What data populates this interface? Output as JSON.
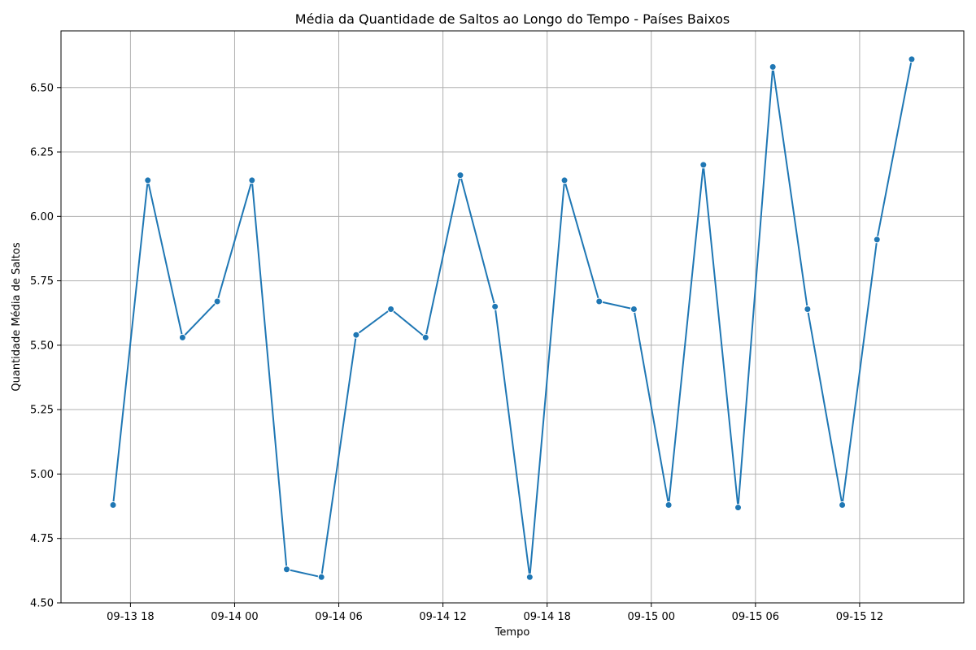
{
  "chart_data": {
    "type": "line",
    "title": "Média da Quantidade de Saltos ao Longo do Tempo - Países Baixos",
    "xlabel": "Tempo",
    "ylabel": "Quantidade Média de Saltos",
    "x_ticks": [
      "09-13 18",
      "09-14 00",
      "09-14 06",
      "09-14 12",
      "09-14 18",
      "09-15 00",
      "09-15 06",
      "09-15 12"
    ],
    "y_ticks": [
      "4.50",
      "4.75",
      "5.00",
      "5.25",
      "5.50",
      "5.75",
      "6.00",
      "6.25",
      "6.50"
    ],
    "ylim": [
      4.5,
      6.72
    ],
    "xlim": [
      "2024-09-13 14:00",
      "2024-09-15 18:00"
    ],
    "grid": true,
    "series": [
      {
        "color": "#1f77b4",
        "x": [
          "2024-09-13 17:00",
          "2024-09-13 19:00",
          "2024-09-13 21:00",
          "2024-09-13 23:00",
          "2024-09-14 01:00",
          "2024-09-14 03:00",
          "2024-09-14 05:00",
          "2024-09-14 07:00",
          "2024-09-14 09:00",
          "2024-09-14 11:00",
          "2024-09-14 13:00",
          "2024-09-14 15:00",
          "2024-09-14 17:00",
          "2024-09-14 19:00",
          "2024-09-14 21:00",
          "2024-09-14 23:00",
          "2024-09-15 01:00",
          "2024-09-15 03:00",
          "2024-09-15 05:00",
          "2024-09-15 07:00",
          "2024-09-15 09:00",
          "2024-09-15 11:00",
          "2024-09-15 13:00",
          "2024-09-15 15:00"
        ],
        "values": [
          4.88,
          6.14,
          5.53,
          5.67,
          6.14,
          4.63,
          4.6,
          5.54,
          5.64,
          5.53,
          6.16,
          5.65,
          4.6,
          6.14,
          5.67,
          5.64,
          4.88,
          6.2,
          4.87,
          6.58,
          5.64,
          4.88,
          5.91,
          6.61
        ]
      }
    ]
  }
}
